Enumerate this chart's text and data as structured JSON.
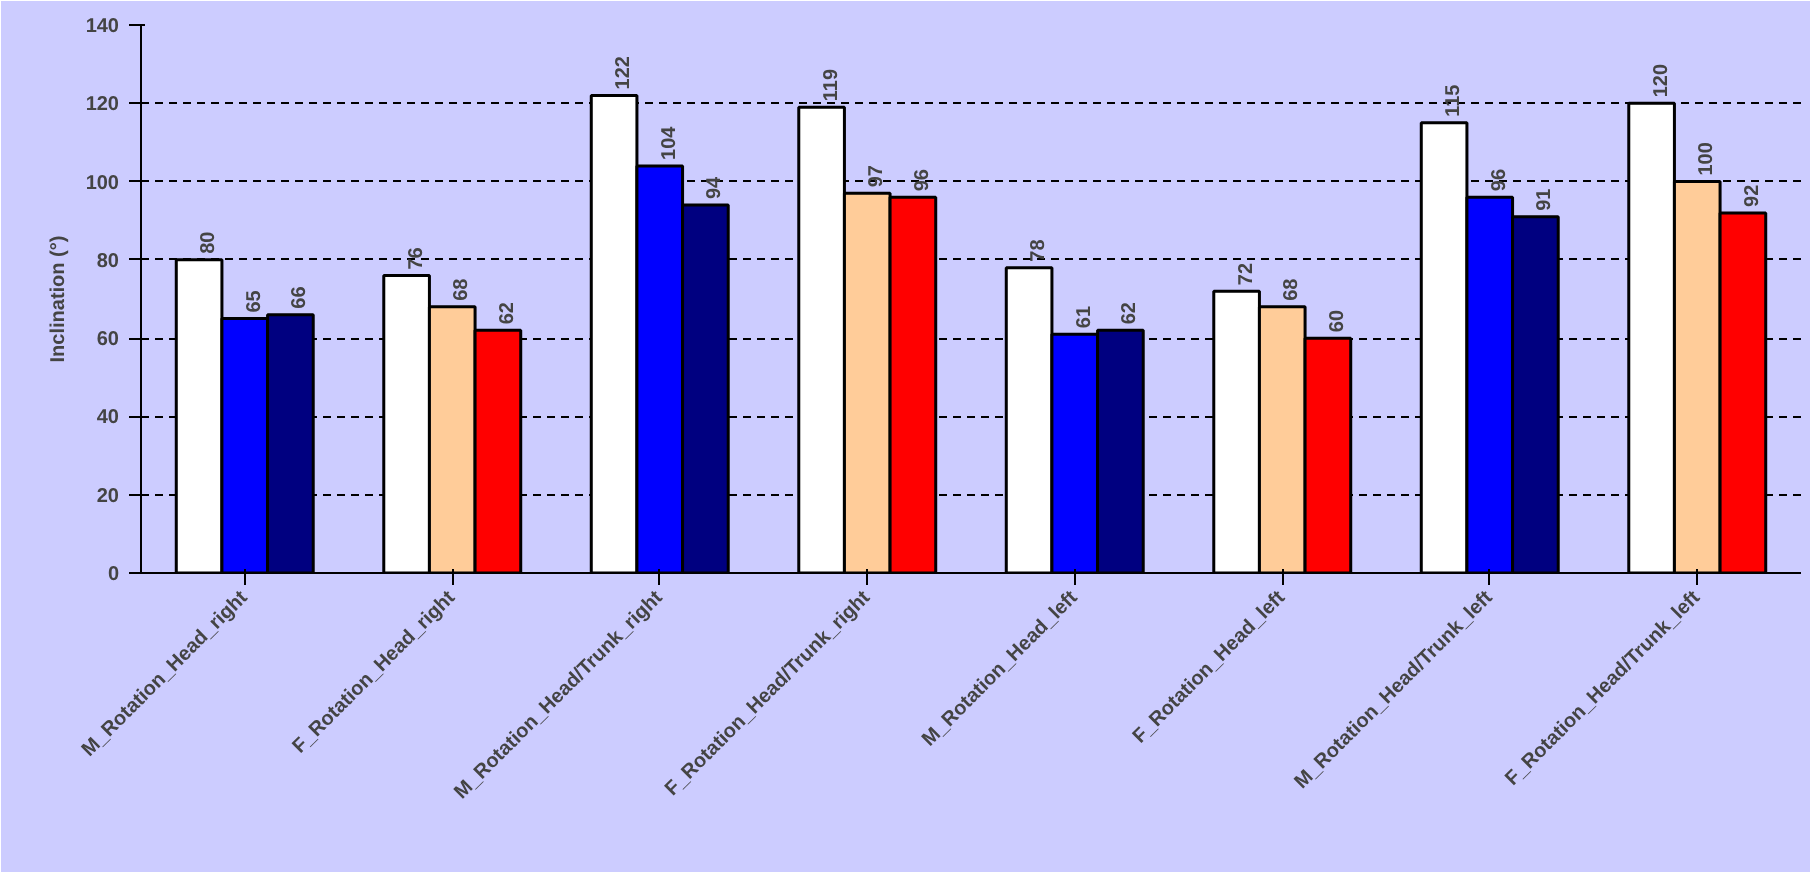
{
  "chart_data": {
    "type": "bar",
    "ylabel": "Inclination (°)",
    "categories": [
      "M_Rotation_Head_right",
      "F_Rotation_Head_right",
      "M_Rotation_Head/Trunk_right",
      "F_Rotation_Head/Trunk_right",
      "M_Rotation_Head_left",
      "F_Rotation_Head_left",
      "M_Rotation_Head/Trunk_left",
      "F_Rotation_Head/Trunk_left"
    ],
    "series": [
      {
        "colors": [
          "#ffffff",
          "#ffffff",
          "#ffffff",
          "#ffffff",
          "#ffffff",
          "#ffffff",
          "#ffffff",
          "#ffffff"
        ],
        "values": [
          80,
          76,
          122,
          119,
          78,
          72,
          115,
          120
        ]
      },
      {
        "colors": [
          "#0000ff",
          "#ffcc99",
          "#0000ff",
          "#ffcc99",
          "#0000ff",
          "#ffcc99",
          "#0000ff",
          "#ffcc99"
        ],
        "values": [
          65,
          68,
          104,
          97,
          61,
          68,
          96,
          100
        ]
      },
      {
        "colors": [
          "#000080",
          "#ff0000",
          "#000080",
          "#ff0000",
          "#000080",
          "#ff0000",
          "#000080",
          "#ff0000"
        ],
        "values": [
          66,
          62,
          94,
          96,
          62,
          60,
          91,
          92
        ]
      }
    ],
    "ylim": [
      0,
      140
    ],
    "yticks": [
      0,
      20,
      40,
      60,
      80,
      100,
      120,
      140
    ],
    "grid": "y",
    "data_labels": true
  }
}
